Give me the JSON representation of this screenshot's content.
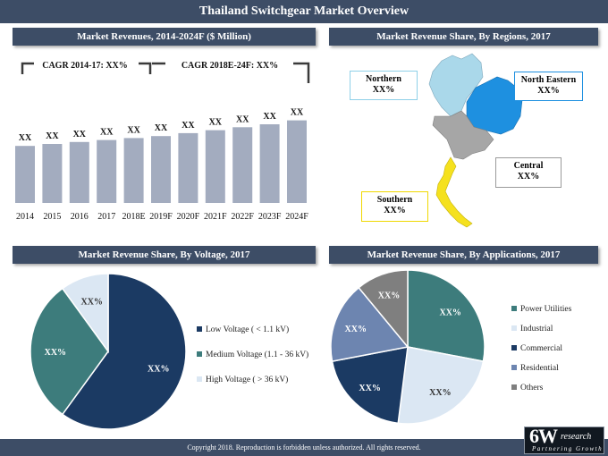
{
  "title": "Thailand Switchgear Market Overview",
  "footer": "Copyright 2018. Reproduction is forbidden unless authorized. All rights reserved.",
  "logo": {
    "main": "6W",
    "sub": "research",
    "tagline": "Partnering Growth"
  },
  "colors": {
    "header_bg": "#3d4d66",
    "bar": "#a3acbf",
    "navy": "#1b3a63",
    "teal": "#3d7c7c",
    "light": "#dbe7f3",
    "steel": "#6d85b0",
    "gray": "#7f7f7f",
    "north": "#aad8ea",
    "north_east": "#1e90e0",
    "central": "#a6a6a6",
    "south": "#f5e11e"
  },
  "sections": {
    "revenues": "Market Revenues, 2014-2024F ($ Million)",
    "regions": "Market Revenue Share, By Regions, 2017",
    "voltage": "Market Revenue Share, By Voltage, 2017",
    "applications": "Market Revenue Share, By Applications, 2017"
  },
  "cagr": {
    "first": "CAGR 2014-17: XX%",
    "second": "CAGR 2018E-24F: XX%"
  },
  "regions": {
    "northern": {
      "name": "Northern",
      "value": "XX%"
    },
    "north_eastern": {
      "name": "North Eastern",
      "value": "XX%"
    },
    "central": {
      "name": "Central",
      "value": "XX%"
    },
    "southern": {
      "name": "Southern",
      "value": "XX%"
    }
  },
  "chart_data": [
    {
      "type": "bar",
      "categories": [
        "2014",
        "2015",
        "2016",
        "2017",
        "2018E",
        "2019F",
        "2020F",
        "2021F",
        "2022F",
        "2023F",
        "2024F"
      ],
      "values": [
        58,
        60,
        62,
        64,
        66,
        68,
        71,
        74,
        77,
        80,
        84
      ],
      "data_labels": [
        "XX",
        "XX",
        "XX",
        "XX",
        "XX",
        "XX",
        "XX",
        "XX",
        "XX",
        "XX",
        "XX"
      ],
      "ylim": [
        0,
        100
      ]
    },
    {
      "type": "pie",
      "labels": [
        "Low Voltage ( < 1.1 kV)",
        "Medium Voltage (1.1 - 36 kV)",
        "High Voltage ( > 36 kV)"
      ],
      "values": [
        60,
        30,
        10
      ],
      "data_labels": [
        "XX%",
        "XX%",
        "XX%"
      ],
      "colors": [
        "#1b3a63",
        "#3d7c7c",
        "#dbe7f3"
      ],
      "legend": "right"
    },
    {
      "type": "pie",
      "labels": [
        "Power Utilities",
        "Industrial",
        "Commercial",
        "Residential",
        "Others"
      ],
      "values": [
        28,
        24,
        20,
        17,
        11
      ],
      "data_labels": [
        "XX%",
        "XX%",
        "XX%",
        "XX%",
        "XX%"
      ],
      "colors": [
        "#3d7c7c",
        "#dbe7f3",
        "#1b3a63",
        "#6d85b0",
        "#7f7f7f"
      ],
      "legend": "right"
    }
  ]
}
